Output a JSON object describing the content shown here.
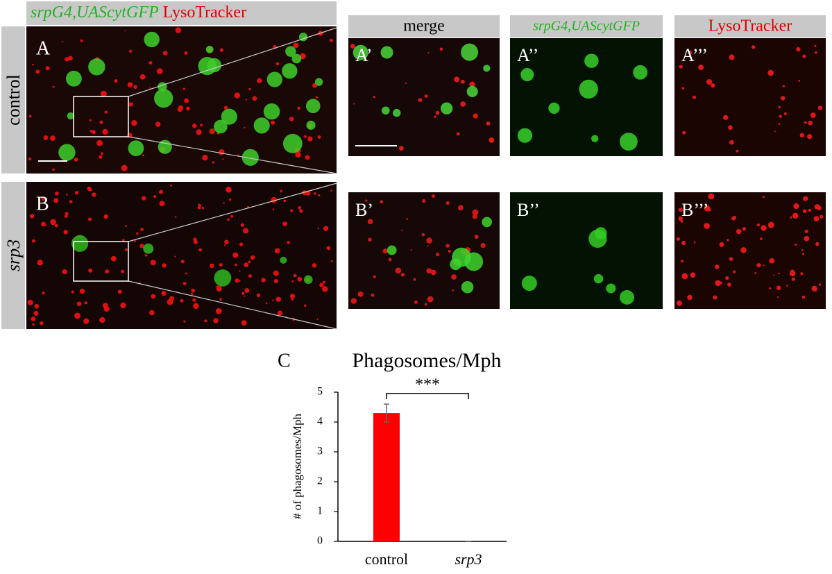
{
  "header": {
    "reporter": "srpG4,UAScytGFP",
    "stain": "LysoTracker"
  },
  "rows": [
    {
      "label": "control",
      "panel": "A"
    },
    {
      "label": "srp3",
      "panel": "B"
    }
  ],
  "columns": [
    "merge",
    "srpG4,UAScytGFP",
    "LysoTracker"
  ],
  "zoom_panels": [
    [
      "A’",
      "A’’",
      "A’’’"
    ],
    [
      "B’",
      "B’’",
      "B’’’"
    ]
  ],
  "chart_data": {
    "type": "bar",
    "panel_label": "C",
    "title": "Phagosomes/Mph",
    "y_label": "# of phagosomes/Mph",
    "categories": [
      "control",
      "srp3"
    ],
    "values": [
      4.3,
      0
    ],
    "errors": [
      0.3,
      0
    ],
    "color": "#ff0000",
    "ylim": [
      0,
      5
    ],
    "yticks": [
      0,
      1,
      2,
      3,
      4,
      5
    ],
    "significance": "***"
  }
}
